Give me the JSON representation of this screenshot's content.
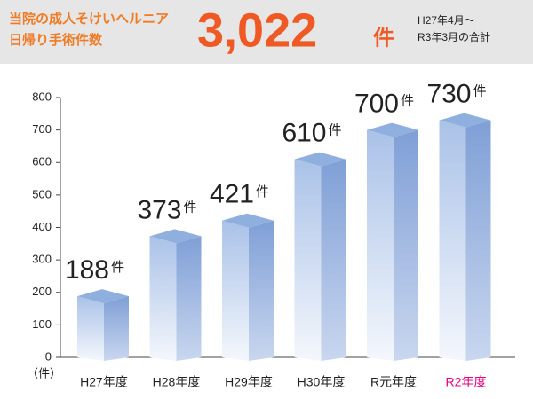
{
  "header": {
    "title_line1": "当院の成人そけいヘルニア",
    "title_line2": "日帰り手術件数",
    "total": "3,022",
    "total_unit": "件",
    "period_line1": "H27年4月～",
    "period_line2": "R3年3月の合計"
  },
  "chart_data": {
    "type": "bar3d",
    "y_label": "（件）",
    "categories": [
      "H27年度",
      "H28年度",
      "H29年度",
      "H30年度",
      "R元年度",
      "R2年度"
    ],
    "category_colors": [
      "#222222",
      "#222222",
      "#222222",
      "#222222",
      "#222222",
      "#e4007f"
    ],
    "values": [
      188,
      373,
      421,
      610,
      700,
      730
    ],
    "value_unit": "件",
    "color": "#8fb0de",
    "ylim": [
      0,
      800
    ],
    "yticks": [
      0,
      100,
      200,
      300,
      400,
      500,
      600,
      700,
      800
    ]
  }
}
